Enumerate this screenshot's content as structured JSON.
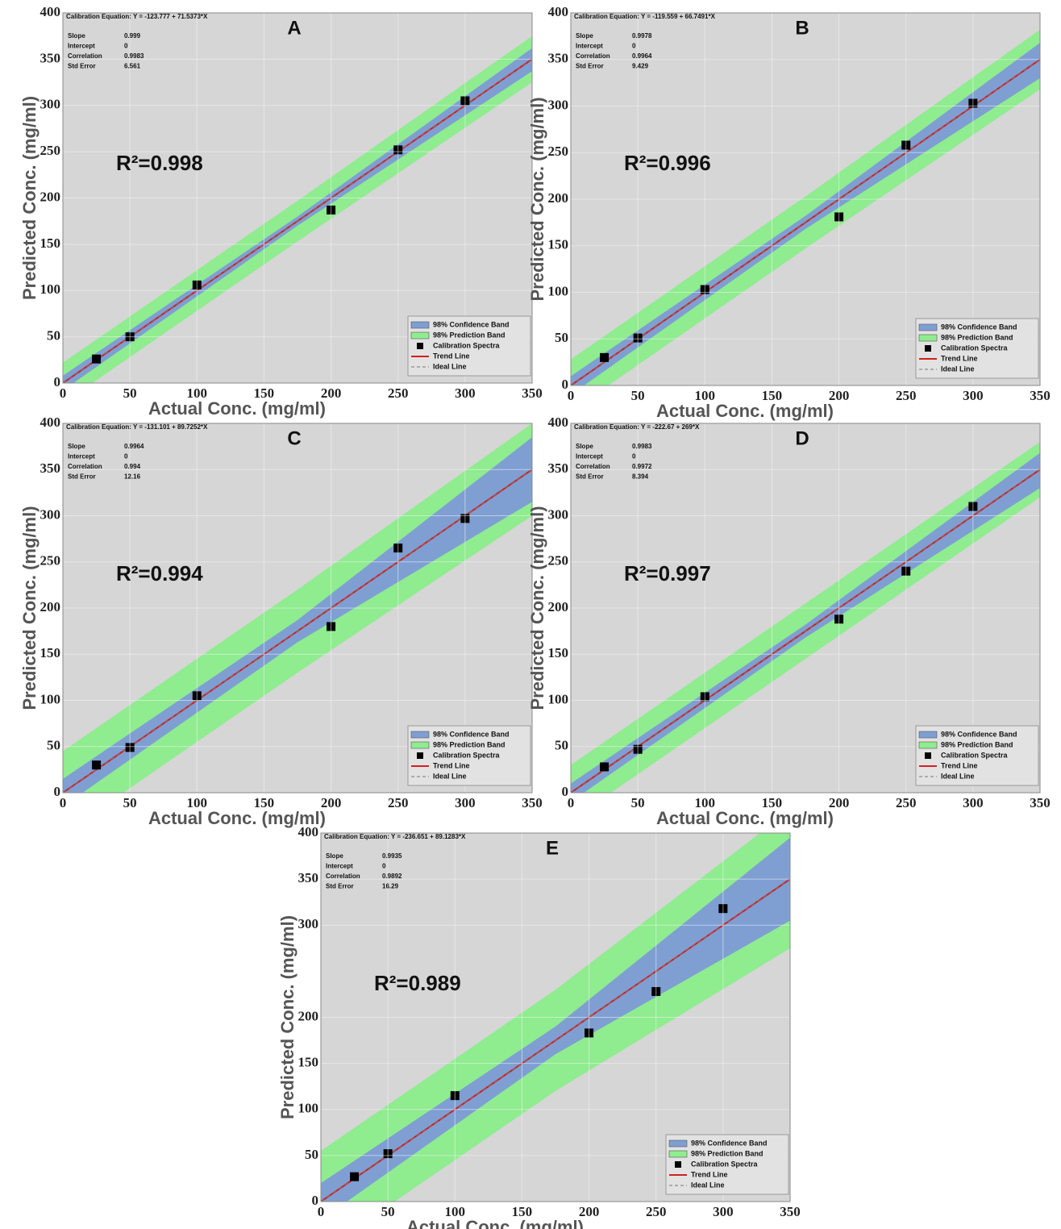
{
  "chart_data": [
    {
      "type": "scatter",
      "panel": "A",
      "annotation": "R²=0.998",
      "equation": "Calibration Equation: Y = -123.777 + 71.5373*X",
      "stats": [
        {
          "label": "Slope",
          "value": 0.999
        },
        {
          "label": "Intercept",
          "value": 0
        },
        {
          "label": "Correlation",
          "value": 0.9983
        },
        {
          "label": "Std Error",
          "value": 6.561
        }
      ],
      "x_label": "Actual Conc. (mg/ml)",
      "y_label": "Predicted Conc. (mg/ml)",
      "xlim": [
        0,
        350
      ],
      "ylim": [
        0,
        400
      ],
      "xticks": [
        0,
        50,
        100,
        150,
        200,
        250,
        300,
        350
      ],
      "yticks": [
        0,
        50,
        100,
        150,
        200,
        250,
        300,
        350,
        400
      ],
      "grid": true,
      "series": [
        {
          "name": "98% Confidence Band",
          "type": "band",
          "color": "#7f9fd3",
          "x": [
            0,
            175,
            350
          ],
          "lower": [
            -8,
            170,
            337
          ],
          "upper": [
            8,
            180,
            362
          ]
        },
        {
          "name": "98% Prediction Band",
          "type": "band",
          "color": "#8fec8f",
          "x": [
            0,
            175,
            350
          ],
          "lower": [
            -22,
            153,
            325
          ],
          "upper": [
            22,
            197,
            375
          ]
        },
        {
          "name": "Calibration Spectra",
          "type": "scatter",
          "color": "#000000",
          "x": [
            25,
            50,
            100,
            200,
            250,
            300
          ],
          "values": [
            26,
            50,
            106,
            187,
            252,
            305
          ]
        },
        {
          "name": "Trend Line",
          "type": "line",
          "color": "#d02020",
          "x": [
            0,
            350
          ],
          "values": [
            0,
            350
          ]
        },
        {
          "name": "Ideal Line",
          "type": "line",
          "line_style": "dashed",
          "color": "#777777",
          "x": [
            0,
            350
          ],
          "values": [
            0,
            350
          ]
        }
      ]
    },
    {
      "type": "scatter",
      "panel": "B",
      "annotation": "R²=0.996",
      "equation": "Calibration Equation: Y = -119.559 + 66.7491*X",
      "stats": [
        {
          "label": "Slope",
          "value": 0.9978
        },
        {
          "label": "Intercept",
          "value": 0
        },
        {
          "label": "Correlation",
          "value": 0.9964
        },
        {
          "label": "Std Error",
          "value": 9.429
        }
      ],
      "x_label": "Actual Conc. (mg/ml)",
      "y_label": "Predicted Conc. (mg/ml)",
      "xlim": [
        0,
        350
      ],
      "ylim": [
        0,
        400
      ],
      "xticks": [
        0,
        50,
        100,
        150,
        200,
        250,
        300,
        350
      ],
      "yticks": [
        0,
        50,
        100,
        150,
        200,
        250,
        300,
        350,
        400
      ],
      "grid": true,
      "series": [
        {
          "name": "98% Confidence Band",
          "type": "band",
          "color": "#7f9fd3",
          "x": [
            0,
            175,
            350
          ],
          "lower": [
            -10,
            168,
            330
          ],
          "upper": [
            10,
            182,
            368
          ]
        },
        {
          "name": "98% Prediction Band",
          "type": "band",
          "color": "#8fec8f",
          "x": [
            0,
            175,
            350
          ],
          "lower": [
            -28,
            147,
            318
          ],
          "upper": [
            28,
            203,
            382
          ]
        },
        {
          "name": "Calibration Spectra",
          "type": "scatter",
          "color": "#000000",
          "x": [
            25,
            50,
            100,
            200,
            250,
            300
          ],
          "values": [
            30,
            51,
            103,
            181,
            258,
            303
          ]
        },
        {
          "name": "Trend Line",
          "type": "line",
          "color": "#d02020",
          "x": [
            0,
            350
          ],
          "values": [
            0,
            350
          ]
        },
        {
          "name": "Ideal Line",
          "type": "line",
          "line_style": "dashed",
          "color": "#777777",
          "x": [
            0,
            350
          ],
          "values": [
            0,
            350
          ]
        }
      ]
    },
    {
      "type": "scatter",
      "panel": "C",
      "annotation": "R²=0.994",
      "equation": "Calibration Equation: Y = -131.101 + 89.7252*X",
      "stats": [
        {
          "label": "Slope",
          "value": 0.9964
        },
        {
          "label": "Intercept",
          "value": 0
        },
        {
          "label": "Correlation",
          "value": 0.994
        },
        {
          "label": "Std Error",
          "value": 12.16
        }
      ],
      "x_label": "Actual Conc. (mg/ml)",
      "y_label": "Predicted Conc. (mg/ml)",
      "xlim": [
        0,
        350
      ],
      "ylim": [
        0,
        400
      ],
      "xticks": [
        0,
        50,
        100,
        150,
        200,
        250,
        300,
        350
      ],
      "yticks": [
        0,
        50,
        100,
        150,
        200,
        250,
        300,
        350,
        400
      ],
      "grid": true,
      "series": [
        {
          "name": "98% Confidence Band",
          "type": "band",
          "color": "#7f9fd3",
          "x": [
            0,
            175,
            350
          ],
          "lower": [
            -15,
            163,
            315
          ],
          "upper": [
            15,
            187,
            385
          ]
        },
        {
          "name": "98% Prediction Band",
          "type": "band",
          "color": "#8fec8f",
          "x": [
            0,
            175,
            350
          ],
          "lower": [
            -45,
            130,
            300
          ],
          "upper": [
            45,
            220,
            400
          ]
        },
        {
          "name": "Calibration Spectra",
          "type": "scatter",
          "color": "#000000",
          "x": [
            25,
            50,
            100,
            200,
            250,
            300
          ],
          "values": [
            30,
            49,
            105,
            180,
            265,
            297
          ]
        },
        {
          "name": "Trend Line",
          "type": "line",
          "color": "#d02020",
          "x": [
            0,
            350
          ],
          "values": [
            0,
            350
          ]
        },
        {
          "name": "Ideal Line",
          "type": "line",
          "line_style": "dashed",
          "color": "#777777",
          "x": [
            0,
            350
          ],
          "values": [
            0,
            350
          ]
        }
      ]
    },
    {
      "type": "scatter",
      "panel": "D",
      "annotation": "R²=0.997",
      "equation": "Calibration Equation: Y = -222.67 + 269*X",
      "stats": [
        {
          "label": "Slope",
          "value": 0.9983
        },
        {
          "label": "Intercept",
          "value": 0
        },
        {
          "label": "Correlation",
          "value": 0.9972
        },
        {
          "label": "Std Error",
          "value": 8.394
        }
      ],
      "x_label": "Actual Conc. (mg/ml)",
      "y_label": "Predicted Conc. (mg/ml)",
      "xlim": [
        0,
        350
      ],
      "ylim": [
        0,
        400
      ],
      "xticks": [
        0,
        50,
        100,
        150,
        200,
        250,
        300,
        350
      ],
      "yticks": [
        0,
        50,
        100,
        150,
        200,
        250,
        300,
        350,
        400
      ],
      "grid": true,
      "series": [
        {
          "name": "98% Confidence Band",
          "type": "band",
          "color": "#7f9fd3",
          "x": [
            0,
            175,
            350
          ],
          "lower": [
            -10,
            168,
            330
          ],
          "upper": [
            10,
            182,
            368
          ]
        },
        {
          "name": "98% Prediction Band",
          "type": "band",
          "color": "#8fec8f",
          "x": [
            0,
            175,
            350
          ],
          "lower": [
            -30,
            145,
            320
          ],
          "upper": [
            30,
            205,
            380
          ]
        },
        {
          "name": "Calibration Spectra",
          "type": "scatter",
          "color": "#000000",
          "x": [
            25,
            50,
            100,
            200,
            250,
            300
          ],
          "values": [
            28,
            47,
            104,
            188,
            240,
            310
          ]
        },
        {
          "name": "Trend Line",
          "type": "line",
          "color": "#d02020",
          "x": [
            0,
            350
          ],
          "values": [
            0,
            350
          ]
        },
        {
          "name": "Ideal Line",
          "type": "line",
          "line_style": "dashed",
          "color": "#777777",
          "x": [
            0,
            350
          ],
          "values": [
            0,
            350
          ]
        }
      ]
    },
    {
      "type": "scatter",
      "panel": "E",
      "annotation": "R²=0.989",
      "equation": "Calibration Equation: Y = -236.651 + 89.1283*X",
      "stats": [
        {
          "label": "Slope",
          "value": 0.9935
        },
        {
          "label": "Intercept",
          "value": 0
        },
        {
          "label": "Correlation",
          "value": 0.9892
        },
        {
          "label": "Std Error",
          "value": 16.29
        }
      ],
      "x_label": "Actual Conc. (mg/ml)",
      "y_label": "Predicted Conc. (mg/ml)",
      "xlim": [
        0,
        350
      ],
      "ylim": [
        0,
        400
      ],
      "xticks": [
        0,
        50,
        100,
        150,
        200,
        250,
        300,
        350
      ],
      "yticks": [
        0,
        50,
        100,
        150,
        200,
        300,
        350,
        400
      ],
      "grid": true,
      "series": [
        {
          "name": "98% Confidence Band",
          "type": "band",
          "color": "#7f9fd3",
          "x": [
            0,
            175,
            350
          ],
          "lower": [
            -20,
            160,
            305
          ],
          "upper": [
            20,
            190,
            395
          ]
        },
        {
          "name": "98% Prediction Band",
          "type": "band",
          "color": "#8fec8f",
          "x": [
            0,
            175,
            350
          ],
          "lower": [
            -55,
            120,
            275
          ],
          "upper": [
            55,
            230,
            425
          ]
        },
        {
          "name": "Calibration Spectra",
          "type": "scatter",
          "color": "#000000",
          "x": [
            25,
            50,
            100,
            200,
            250,
            300
          ],
          "values": [
            27,
            52,
            115,
            183,
            228,
            318
          ]
        },
        {
          "name": "Trend Line",
          "type": "line",
          "color": "#d02020",
          "x": [
            0,
            350
          ],
          "values": [
            0,
            350
          ]
        },
        {
          "name": "Ideal Line",
          "type": "line",
          "line_style": "dashed",
          "color": "#777777",
          "x": [
            0,
            350
          ],
          "values": [
            0,
            350
          ]
        }
      ]
    }
  ]
}
